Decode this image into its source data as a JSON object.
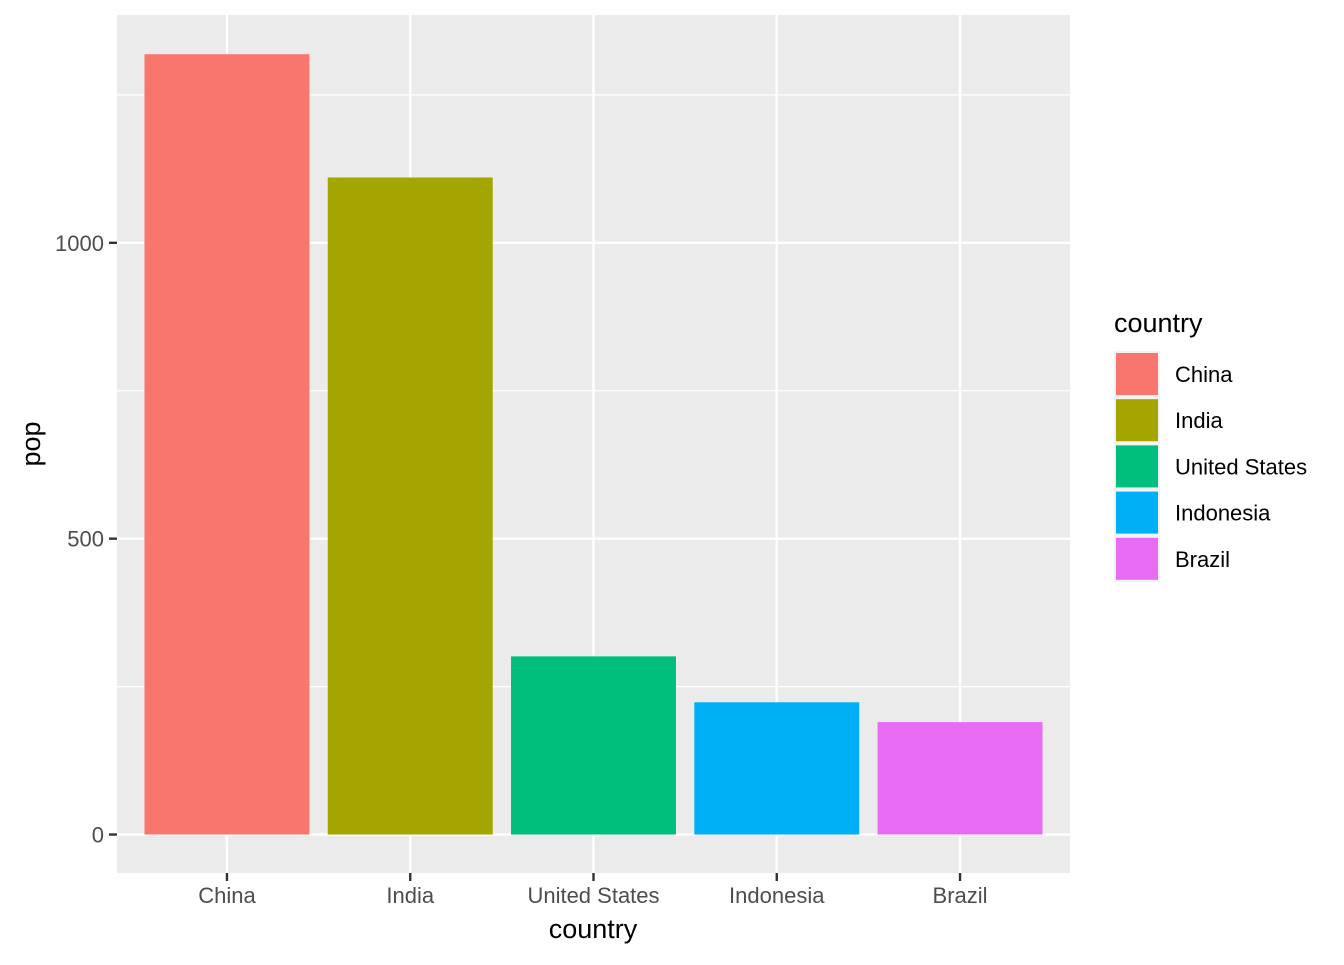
{
  "chart_data": {
    "type": "bar",
    "title": "",
    "xlabel": "country",
    "ylabel": "pop",
    "categories": [
      "China",
      "India",
      "United States",
      "Indonesia",
      "Brazil"
    ],
    "values": [
      1318.7,
      1110.4,
      301.1,
      223.5,
      190.0
    ],
    "colors": [
      "#F8766D",
      "#A3A500",
      "#00BF7D",
      "#00B0F6",
      "#E76BF3"
    ],
    "ylim": [
      -65,
      1385
    ],
    "y_ticks": [
      0,
      500,
      1000
    ],
    "y_tick_labels": [
      "0",
      "500",
      "1000"
    ],
    "y_minor_ticks": [
      250,
      750,
      1250
    ],
    "grid": true,
    "panel_background": "#EBEBEB",
    "grid_color": "#FFFFFF",
    "legend": {
      "title": "country",
      "position": "right",
      "entries": [
        "China",
        "India",
        "United States",
        "Indonesia",
        "Brazil"
      ]
    }
  }
}
